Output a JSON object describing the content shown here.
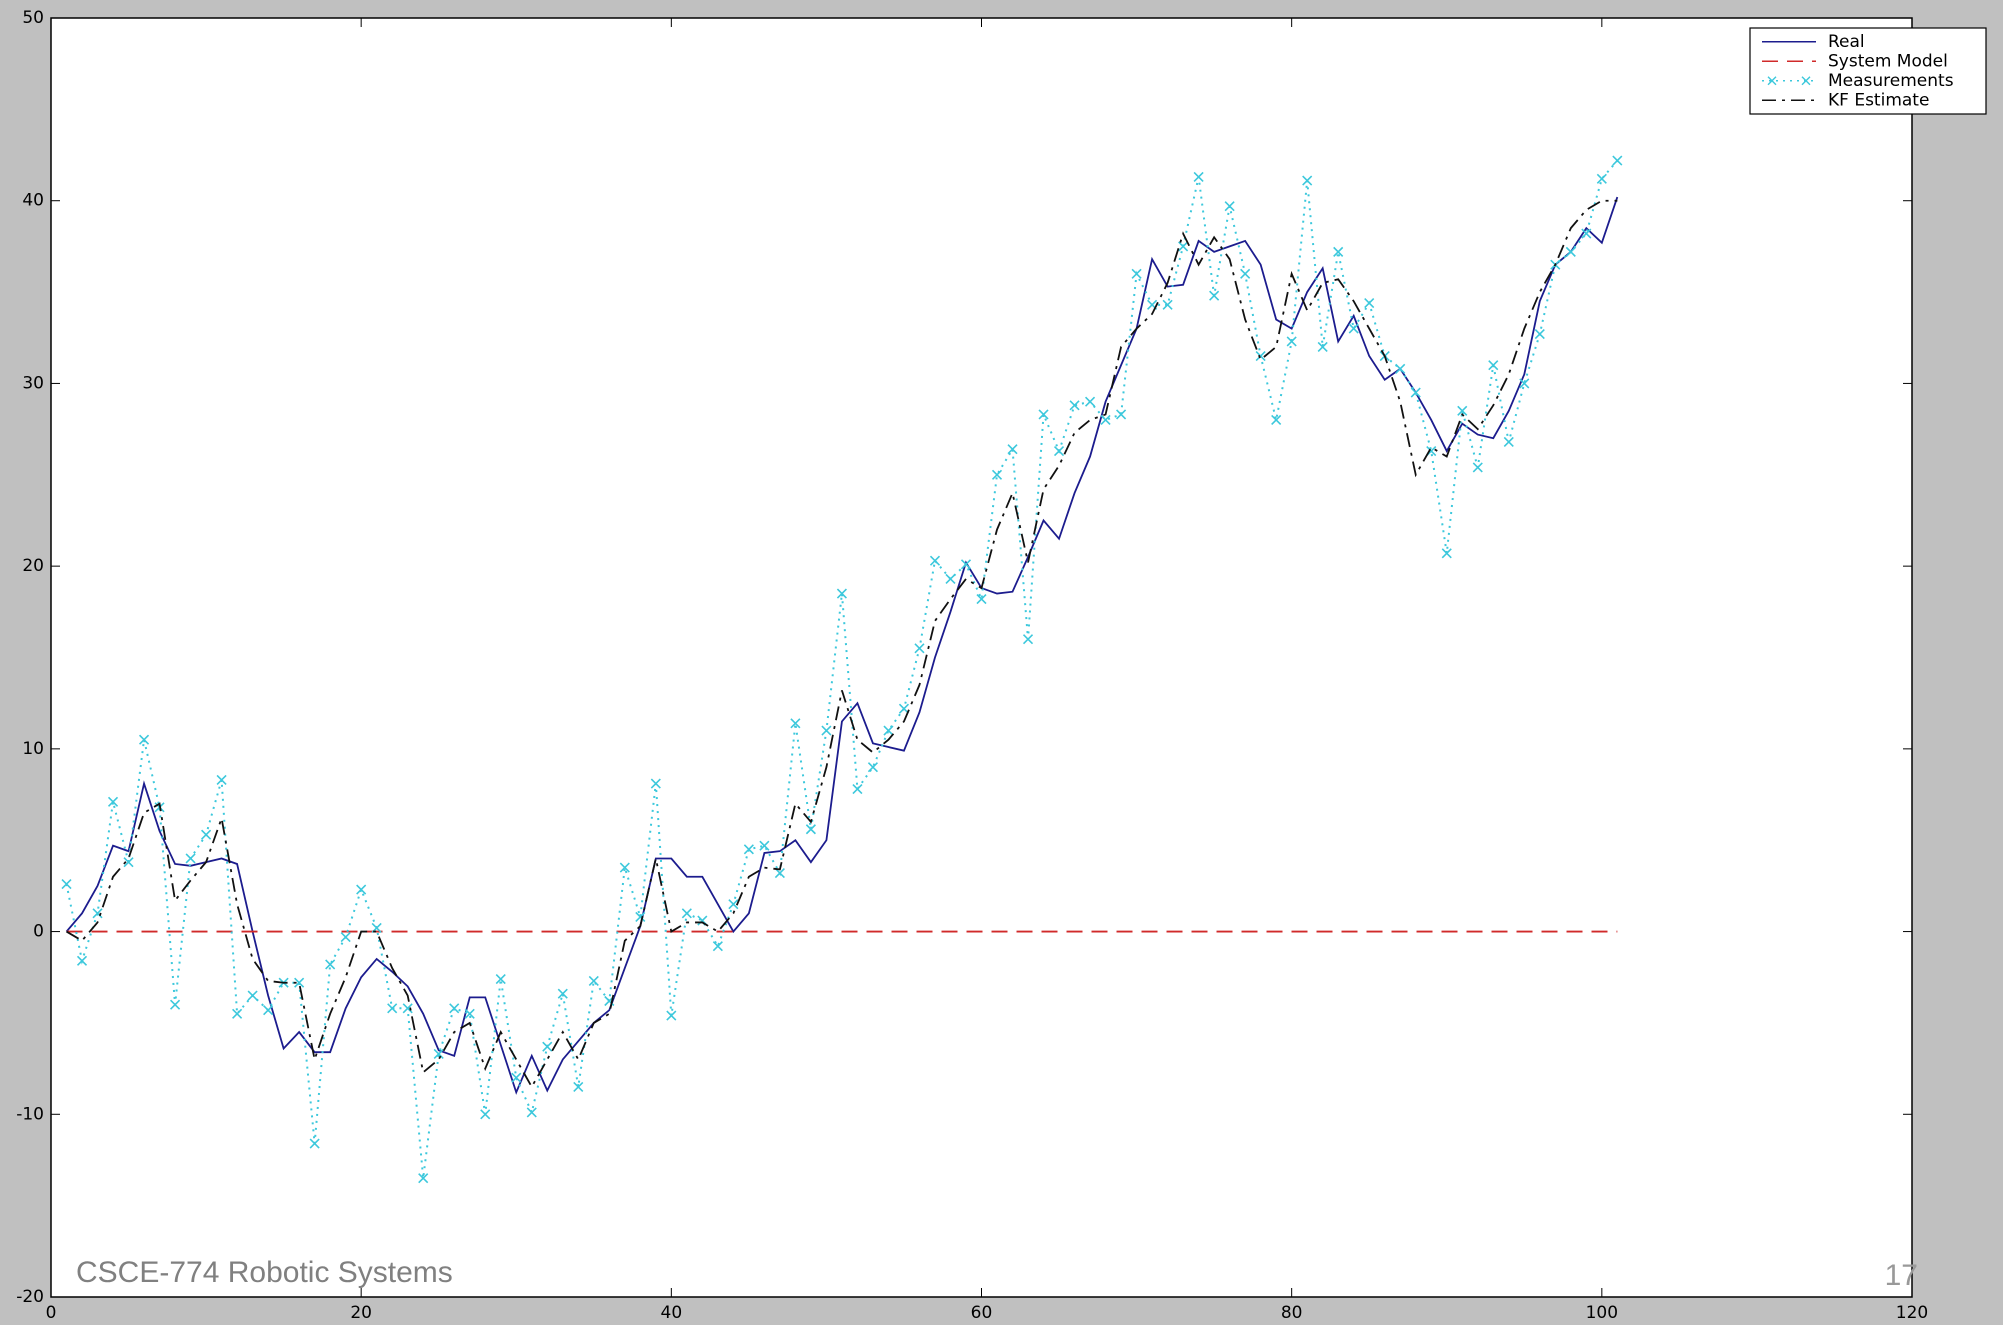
{
  "chart_data": {
    "type": "line",
    "x": [
      1,
      2,
      3,
      4,
      5,
      6,
      7,
      8,
      9,
      10,
      11,
      12,
      13,
      14,
      15,
      16,
      17,
      18,
      19,
      20,
      21,
      22,
      23,
      24,
      25,
      26,
      27,
      28,
      29,
      30,
      31,
      32,
      33,
      34,
      35,
      36,
      37,
      38,
      39,
      40,
      41,
      42,
      43,
      44,
      45,
      46,
      47,
      48,
      49,
      50,
      51,
      52,
      53,
      54,
      55,
      56,
      57,
      58,
      59,
      60,
      61,
      62,
      63,
      64,
      65,
      66,
      67,
      68,
      69,
      70,
      71,
      72,
      73,
      74,
      75,
      76,
      77,
      78,
      79,
      80,
      81,
      82,
      83,
      84,
      85,
      86,
      87,
      88,
      89,
      90,
      91,
      92,
      93,
      94,
      95,
      96,
      97,
      98,
      99,
      100,
      101
    ],
    "series": [
      {
        "name": "Real",
        "color": "#1c1c8e",
        "style": "solid",
        "values": [
          0,
          1,
          2.5,
          4.7,
          4.4,
          8.1,
          5.5,
          3.7,
          3.6,
          3.8,
          4,
          3.7,
          0,
          -3.5,
          -6.4,
          -5.5,
          -6.6,
          -6.6,
          -4.2,
          -2.5,
          -1.5,
          -2.2,
          -3,
          -4.5,
          -6.5,
          -6.8,
          -3.6,
          -3.6,
          -6.2,
          -8.8,
          -6.8,
          -8.7,
          -7,
          -6,
          -5,
          -4.3,
          -2,
          0.3,
          4,
          4,
          3,
          3,
          1.5,
          0,
          1,
          4.3,
          4.4,
          5,
          3.8,
          5,
          11.5,
          12.5,
          10.3,
          10.1,
          9.9,
          12,
          15,
          17.5,
          20.2,
          18.8,
          18.5,
          18.6,
          20.5,
          22.5,
          21.5,
          24,
          26,
          29,
          31,
          33,
          36.8,
          35.3,
          35.4,
          37.8,
          37.2,
          37.5,
          37.8,
          36.5,
          33.5,
          33,
          35,
          36.3,
          32.3,
          33.7,
          31.5,
          30.2,
          30.8,
          29.5,
          28,
          26.3,
          27.8,
          27.2,
          27,
          28.5,
          30.5,
          34.5,
          36.5,
          37.2,
          38.5,
          37.7,
          40.2
        ]
      },
      {
        "name": "System Model",
        "color": "#d02a2a",
        "style": "dashed",
        "values": [
          0,
          0,
          0,
          0,
          0,
          0,
          0,
          0,
          0,
          0,
          0,
          0,
          0,
          0,
          0,
          0,
          0,
          0,
          0,
          0,
          0,
          0,
          0,
          0,
          0,
          0,
          0,
          0,
          0,
          0,
          0,
          0,
          0,
          0,
          0,
          0,
          0,
          0,
          0,
          0,
          0,
          0,
          0,
          0,
          0,
          0,
          0,
          0,
          0,
          0,
          0,
          0,
          0,
          0,
          0,
          0,
          0,
          0,
          0,
          0,
          0,
          0,
          0,
          0,
          0,
          0,
          0,
          0,
          0,
          0,
          0,
          0,
          0,
          0,
          0,
          0,
          0,
          0,
          0,
          0,
          0,
          0,
          0,
          0,
          0,
          0,
          0,
          0,
          0,
          0,
          0,
          0,
          0,
          0,
          0,
          0,
          0,
          0,
          0,
          0,
          0
        ]
      },
      {
        "name": "Measurements",
        "color": "#3cc8dc",
        "style": "dotted",
        "marker": "x",
        "values": [
          2.6,
          -1.6,
          1,
          7.1,
          3.8,
          10.5,
          6.8,
          -4,
          4,
          5.3,
          8.3,
          -4.5,
          -3.5,
          -4.3,
          -2.8,
          -2.8,
          -11.6,
          -1.8,
          -0.3,
          2.3,
          0.2,
          -4.2,
          -4.2,
          -13.5,
          -6.7,
          -4.2,
          -4.5,
          -10,
          -2.6,
          -8,
          -9.9,
          -6.3,
          -3.4,
          -8.5,
          -2.7,
          -3.8,
          3.5,
          0.8,
          8.1,
          -4.6,
          1,
          0.6,
          -0.8,
          1.5,
          4.5,
          4.7,
          3.2,
          11.4,
          5.6,
          11,
          18.5,
          7.8,
          9,
          11,
          12.2,
          15.5,
          20.3,
          19.3,
          20.1,
          18.2,
          25,
          26.4,
          16,
          28.3,
          26.3,
          28.8,
          29,
          28,
          28.3,
          36,
          34.3,
          34.3,
          37.5,
          41.3,
          34.8,
          39.7,
          36,
          31.5,
          28,
          32.3,
          41.1,
          32,
          37.2,
          33,
          34.4,
          31.5,
          30.8,
          29.5,
          26.3,
          20.7,
          28.5,
          25.4,
          31,
          26.8,
          30,
          32.7,
          36.5,
          37.2,
          38.2,
          41.2,
          42.2
        ]
      },
      {
        "name": "KF Estimate",
        "color": "#111111",
        "style": "dashdot",
        "values": [
          0,
          -0.5,
          0.5,
          3,
          4,
          6.5,
          7,
          1.7,
          2.8,
          3.8,
          6.2,
          1.5,
          -1.5,
          -2.7,
          -2.8,
          -2.8,
          -7,
          -4.5,
          -2.5,
          0,
          0,
          -2,
          -3.5,
          -7.7,
          -7,
          -5.5,
          -5,
          -7.5,
          -5.5,
          -7,
          -8.5,
          -7,
          -5.5,
          -7,
          -5,
          -4.5,
          -0.5,
          0.3,
          4,
          0,
          0.5,
          0.5,
          0,
          1,
          3,
          3.5,
          3.4,
          7,
          6,
          9,
          13.2,
          10.5,
          9.8,
          10.5,
          11.5,
          13.5,
          17,
          18.2,
          19.3,
          18.8,
          22,
          24,
          20.2,
          24.2,
          25.5,
          27.3,
          28,
          28.3,
          32,
          33,
          33.8,
          35.5,
          38.2,
          36.5,
          38,
          36.8,
          33.5,
          31.3,
          32,
          36,
          34,
          35.5,
          35.7,
          34.5,
          33,
          31.5,
          29,
          25,
          26.5,
          26,
          28.3,
          27.5,
          28.8,
          30.5,
          33,
          35,
          36.5,
          38.5,
          39.5,
          40,
          40
        ]
      }
    ],
    "xlim": [
      0,
      120
    ],
    "xticks": [
      0,
      20,
      40,
      60,
      80,
      100,
      120
    ],
    "ylim": [
      -20,
      50
    ],
    "yticks": [
      -20,
      -10,
      0,
      10,
      20,
      30,
      40,
      50
    ],
    "grid": false,
    "legend": "upper right"
  },
  "footer": "CSCE-774 Robotic Systems",
  "page_number": "17"
}
